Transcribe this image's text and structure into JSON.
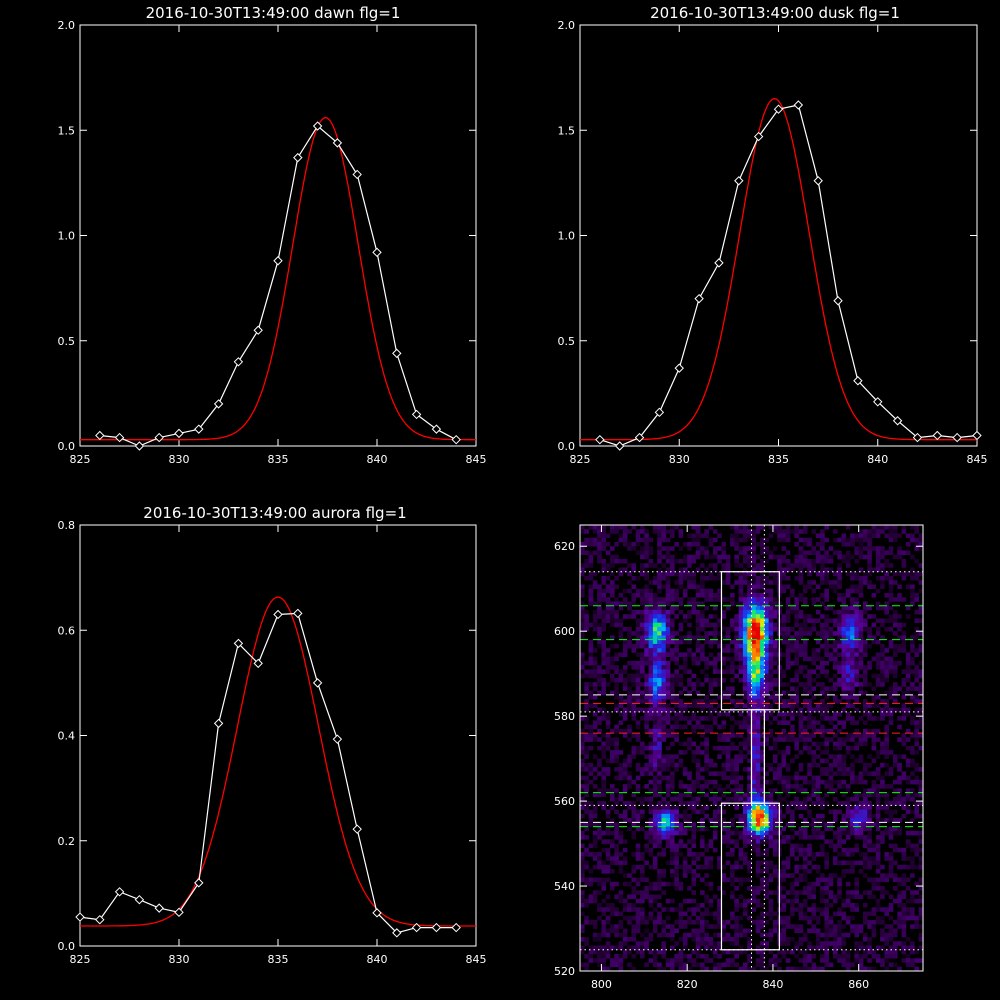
{
  "colors": {
    "background": "#000000",
    "axes": "#ffffff",
    "data": "#ffffff",
    "fit": "#ff0000",
    "green_line": "#00ff00",
    "red_line": "#ff2020",
    "white_dash": "#ffffff"
  },
  "chart_data": [
    {
      "type": "line",
      "title": "2016-10-30T13:49:00 dawn flg=1",
      "xlim": [
        825,
        845
      ],
      "ylim": [
        0,
        2
      ],
      "xticks": [
        825,
        830,
        835,
        840,
        845
      ],
      "yticks": [
        0.0,
        0.5,
        1.0,
        1.5,
        2.0
      ],
      "ytick_labels": [
        "0.0",
        "0.5",
        "1.0",
        "1.5",
        "2.0"
      ],
      "series": [
        {
          "role": "data",
          "marker": "diamond",
          "x": [
            826,
            827,
            828,
            829,
            830,
            831,
            832,
            833,
            834,
            835,
            836,
            837,
            838,
            839,
            840,
            841,
            842,
            843,
            844
          ],
          "y": [
            0.05,
            0.04,
            0.0,
            0.04,
            0.06,
            0.08,
            0.2,
            0.4,
            0.55,
            0.88,
            1.37,
            1.52,
            1.44,
            1.29,
            0.92,
            0.44,
            0.15,
            0.08,
            0.03
          ]
        },
        {
          "role": "fit",
          "gauss": {
            "a": 1.53,
            "mu": 837.4,
            "sigma": 1.65,
            "c": 0.03
          }
        }
      ]
    },
    {
      "type": "line",
      "title": "2016-10-30T13:49:00 dusk flg=1",
      "xlim": [
        825,
        845
      ],
      "ylim": [
        0,
        2
      ],
      "xticks": [
        825,
        830,
        835,
        840,
        845
      ],
      "yticks": [
        0.0,
        0.5,
        1.0,
        1.5,
        2.0
      ],
      "ytick_labels": [
        "0.0",
        "0.5",
        "1.0",
        "1.5",
        "2.0"
      ],
      "series": [
        {
          "role": "data",
          "marker": "diamond",
          "x": [
            826,
            827,
            828,
            829,
            830,
            831,
            832,
            833,
            834,
            835,
            836,
            837,
            838,
            839,
            840,
            841,
            842,
            843,
            844,
            845
          ],
          "y": [
            0.03,
            0.0,
            0.04,
            0.16,
            0.37,
            0.7,
            0.87,
            1.26,
            1.47,
            1.6,
            1.62,
            1.26,
            0.69,
            0.31,
            0.21,
            0.12,
            0.04,
            0.05,
            0.04,
            0.05
          ]
        },
        {
          "role": "fit",
          "gauss": {
            "a": 1.62,
            "mu": 834.8,
            "sigma": 1.75,
            "c": 0.03
          }
        }
      ]
    },
    {
      "type": "line",
      "title": "2016-10-30T13:49:00 aurora flg=1",
      "xlim": [
        825,
        845
      ],
      "ylim": [
        0,
        0.8
      ],
      "xticks": [
        825,
        830,
        835,
        840,
        845
      ],
      "yticks": [
        0.0,
        0.2,
        0.4,
        0.6,
        0.8
      ],
      "ytick_labels": [
        "0.0",
        "0.2",
        "0.4",
        "0.6",
        "0.8"
      ],
      "series": [
        {
          "role": "data",
          "marker": "diamond",
          "x": [
            825,
            826,
            827,
            828,
            829,
            830,
            831,
            832,
            833,
            834,
            835,
            836,
            837,
            838,
            839,
            840,
            841,
            842,
            843,
            844
          ],
          "y": [
            0.055,
            0.05,
            0.103,
            0.088,
            0.072,
            0.064,
            0.12,
            0.423,
            0.575,
            0.537,
            0.63,
            0.632,
            0.5,
            0.393,
            0.222,
            0.063,
            0.025,
            0.035,
            0.035,
            0.035
          ]
        },
        {
          "role": "fit",
          "gauss": {
            "a": 0.625,
            "mu": 835.0,
            "sigma": 2.05,
            "c": 0.038
          }
        }
      ]
    },
    {
      "type": "heatmap",
      "title": "",
      "xlim": [
        795,
        875
      ],
      "ylim": [
        520,
        625
      ],
      "xticks": [
        800,
        820,
        840,
        860
      ],
      "yticks": [
        520,
        540,
        560,
        580,
        600,
        620
      ],
      "hlines": [
        {
          "y": 614,
          "style": "dotted",
          "color": "#ffffff"
        },
        {
          "y": 606,
          "style": "dashed",
          "color": "#00ff00"
        },
        {
          "y": 598,
          "style": "dashed",
          "color": "#00ff00"
        },
        {
          "y": 585,
          "style": "dashed",
          "color": "#ffffff"
        },
        {
          "y": 583,
          "style": "dashed",
          "color": "#ff2020"
        },
        {
          "y": 581,
          "style": "dotted",
          "color": "#ffffff"
        },
        {
          "y": 576,
          "style": "dashed",
          "color": "#ff2020"
        },
        {
          "y": 562,
          "style": "dashed",
          "color": "#00ff00"
        },
        {
          "y": 559,
          "style": "dotted",
          "color": "#ffffff"
        },
        {
          "y": 555,
          "style": "dashed",
          "color": "#ffffff"
        },
        {
          "y": 554,
          "style": "dashed",
          "color": "#00ff00"
        },
        {
          "y": 525,
          "style": "dotted",
          "color": "#ffffff"
        }
      ],
      "vlines": [
        {
          "x": 835,
          "style": "dotted",
          "color": "#ffffff"
        },
        {
          "x": 838,
          "style": "dotted",
          "color": "#ffffff"
        }
      ],
      "boxes": [
        {
          "x0": 828,
          "x1": 841.5,
          "y0": 581.5,
          "y1": 614
        },
        {
          "x0": 828,
          "x1": 841.5,
          "y0": 525,
          "y1": 559.5
        },
        {
          "x0": 835,
          "x1": 838,
          "y0": 559.5,
          "y1": 581.5
        }
      ],
      "blobs": [
        {
          "x": 836,
          "y": 600,
          "sx": 2.0,
          "sy": 4.5,
          "a": 1.0
        },
        {
          "x": 836,
          "y": 590,
          "sx": 1.6,
          "sy": 4.0,
          "a": 0.55
        },
        {
          "x": 837,
          "y": 556,
          "sx": 2.0,
          "sy": 2.6,
          "a": 0.92
        },
        {
          "x": 836,
          "y": 570,
          "sx": 0.9,
          "sy": 10.0,
          "a": 0.28
        },
        {
          "x": 813,
          "y": 600,
          "sx": 1.8,
          "sy": 3.5,
          "a": 0.6
        },
        {
          "x": 813,
          "y": 588,
          "sx": 1.5,
          "sy": 3.5,
          "a": 0.42
        },
        {
          "x": 815,
          "y": 555,
          "sx": 1.8,
          "sy": 2.2,
          "a": 0.55
        },
        {
          "x": 813,
          "y": 573,
          "sx": 1.0,
          "sy": 5.0,
          "a": 0.2
        },
        {
          "x": 858,
          "y": 600,
          "sx": 1.6,
          "sy": 3.0,
          "a": 0.42
        },
        {
          "x": 858,
          "y": 590,
          "sx": 1.4,
          "sy": 3.0,
          "a": 0.25
        },
        {
          "x": 860,
          "y": 556,
          "sx": 1.6,
          "sy": 2.0,
          "a": 0.35
        }
      ]
    }
  ]
}
